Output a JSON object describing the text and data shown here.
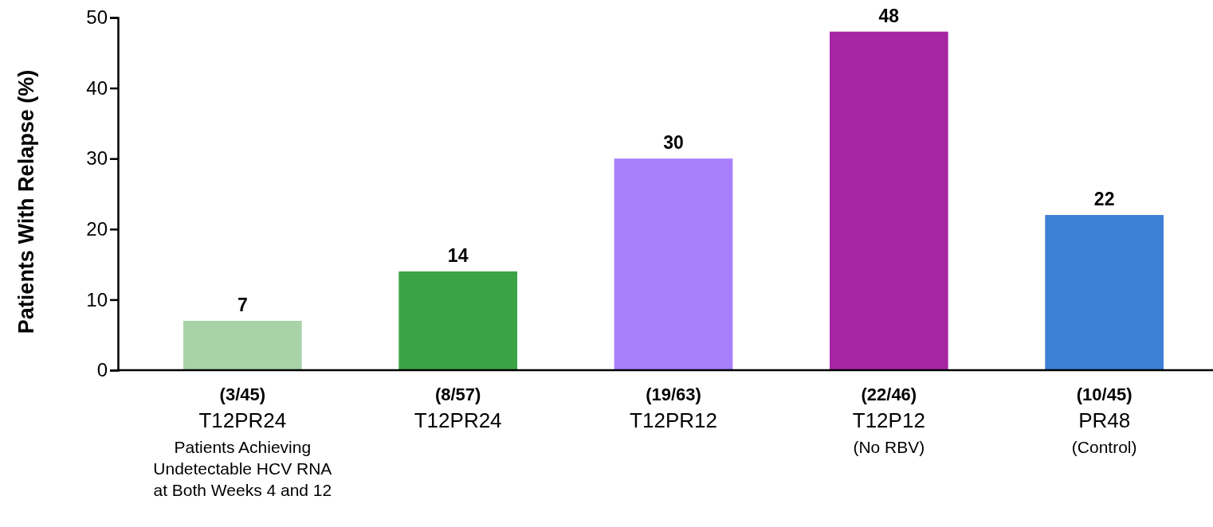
{
  "chart_data": {
    "type": "bar",
    "ylabel": "Patients With Relapse (%)",
    "categories": [
      "(3/45)\nT12PR24\nPatients Achieving\nUndetectable HCV RNA\nat Both Weeks 4 and 12",
      "(8/57)\nT12PR24",
      "(19/63)\nT12PR12",
      "(22/46)\nT12P12\n(No RBV)",
      "(10/45)\nPR48\n(Control)"
    ],
    "values": [
      7,
      14,
      30,
      48,
      22
    ],
    "colors": [
      "#a8d3a8",
      "#3aa346",
      "#a87ffc",
      "#a626a4",
      "#3d7fd4"
    ],
    "ylim": [
      0,
      50
    ],
    "yticks": [
      0,
      10,
      20,
      30,
      40,
      50
    ],
    "data_labels": true
  }
}
